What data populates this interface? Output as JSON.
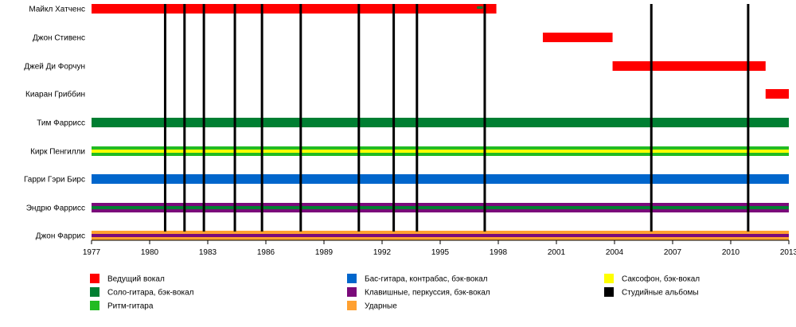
{
  "chart_data": {
    "type": "timeline",
    "x_range": [
      1977,
      2013
    ],
    "x_ticks": [
      "1977",
      "1980",
      "1983",
      "1986",
      "1989",
      "1992",
      "1995",
      "1998",
      "2001",
      "2004",
      "2007",
      "2010",
      "2013"
    ],
    "colors": {
      "lead_vocals": "#ff0000",
      "lead_guitar": "#007f32",
      "rhythm_guitar": "#22bb22",
      "bass": "#0066cc",
      "keys": "#7a0a7a",
      "drums": "#ffa030",
      "sax": "#ffff00",
      "albums": "#000000"
    },
    "members": [
      {
        "name": "Майкл Хатченс",
        "bars": [
          {
            "role": "lead_vocals",
            "start": 1977.0,
            "end": 1997.9
          }
        ]
      },
      {
        "name": "Джон Стивенс",
        "bars": [
          {
            "role": "lead_vocals",
            "start": 2000.3,
            "end": 2003.9
          }
        ]
      },
      {
        "name": "Джей Ди Форчун",
        "bars": [
          {
            "role": "lead_vocals",
            "start": 2003.9,
            "end": 2011.8
          }
        ]
      },
      {
        "name": "Киаран Гриббин",
        "bars": [
          {
            "role": "lead_vocals",
            "start": 2011.8,
            "end": 2013.0
          }
        ]
      },
      {
        "name": "Тим Фаррисс",
        "bars": [
          {
            "role": "lead_guitar",
            "start": 1977.0,
            "end": 2013.0
          }
        ]
      },
      {
        "name": "Кирк Пенгилли",
        "bars": [
          {
            "role": "rhythm_guitar",
            "start": 1977.0,
            "end": 2013.0
          },
          {
            "role": "sax",
            "start": 1977.0,
            "end": 2013.0,
            "inner": true
          }
        ]
      },
      {
        "name": "Гарри Гэри Бирс",
        "bars": [
          {
            "role": "bass",
            "start": 1977.0,
            "end": 2013.0
          }
        ]
      },
      {
        "name": "Эндрю Фаррисс",
        "bars": [
          {
            "role": "keys",
            "start": 1977.0,
            "end": 2013.0
          },
          {
            "role": "lead_guitar",
            "start": 1977.0,
            "end": 2013.0,
            "inner": true
          }
        ]
      },
      {
        "name": "Джон Фаррис",
        "bars": [
          {
            "role": "drums",
            "start": 1977.0,
            "end": 2013.0
          },
          {
            "role": "keys",
            "start": 1977.0,
            "end": 2013.0,
            "inner": true
          }
        ]
      }
    ],
    "extra_marks": [
      {
        "member_index": 0,
        "role": "lead_guitar",
        "start": 1996.9,
        "end": 1997.2
      }
    ],
    "albums": [
      1980.8,
      1981.8,
      1982.8,
      1984.4,
      1985.8,
      1987.8,
      1990.8,
      1992.6,
      1993.8,
      1997.3,
      2005.9,
      2010.9
    ],
    "legend": [
      {
        "role": "lead_vocals",
        "label": "Ведущий вокал"
      },
      {
        "role": "lead_guitar",
        "label": "Соло-гитара, бэк-вокал"
      },
      {
        "role": "rhythm_guitar",
        "label": "Ритм-гитара"
      },
      {
        "role": "bass",
        "label": "Бас-гитара, контрабас, бэк-вокал"
      },
      {
        "role": "keys",
        "label": "Клавишные, перкуссия, бэк-вокал"
      },
      {
        "role": "drums",
        "label": "Ударные"
      },
      {
        "role": "sax",
        "label": "Саксофон, бэк-вокал"
      },
      {
        "role": "albums",
        "label": "Студийные альбомы"
      }
    ]
  }
}
